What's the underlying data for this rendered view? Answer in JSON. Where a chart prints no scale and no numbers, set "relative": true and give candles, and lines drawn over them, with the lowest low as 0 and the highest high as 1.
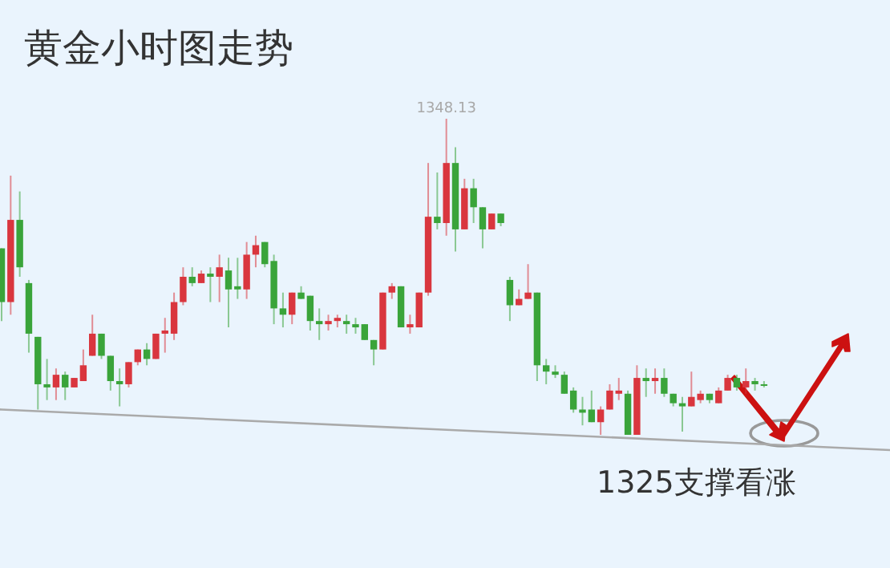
{
  "chart_data": {
    "type": "candlestick",
    "relative": true,
    "title": "黄金小时图走势",
    "categories": [
      null,
      null,
      null,
      null,
      null,
      null,
      null,
      null,
      null,
      null,
      null,
      null,
      null,
      null,
      null,
      null,
      null,
      null,
      null,
      null,
      null,
      null,
      null,
      null,
      null,
      null,
      null,
      null,
      null,
      null,
      null,
      null,
      null,
      null,
      null,
      null,
      null,
      null,
      null,
      null,
      null,
      null,
      null,
      null,
      null,
      null,
      null,
      null,
      null,
      null,
      null,
      null,
      null,
      null,
      null,
      null,
      null,
      null,
      null,
      null,
      null,
      null,
      null,
      null,
      null,
      null,
      null,
      null,
      null,
      null,
      null,
      null,
      null,
      null,
      null,
      null,
      null,
      null,
      null,
      null,
      null,
      null,
      null,
      null,
      null
    ],
    "ohlc": [
      [
        0.59,
        0.59,
        0.36,
        0.42
      ],
      [
        0.42,
        0.82,
        0.38,
        0.68
      ],
      [
        0.68,
        0.77,
        0.5,
        0.53
      ],
      [
        0.48,
        0.49,
        0.26,
        0.32
      ],
      [
        0.31,
        0.31,
        0.08,
        0.16
      ],
      [
        0.16,
        0.24,
        0.11,
        0.15
      ],
      [
        0.15,
        0.21,
        0.11,
        0.19
      ],
      [
        0.19,
        0.2,
        0.11,
        0.15
      ],
      [
        0.15,
        0.18,
        0.15,
        0.18
      ],
      [
        0.17,
        0.27,
        0.17,
        0.22
      ],
      [
        0.25,
        0.38,
        0.25,
        0.32
      ],
      [
        0.32,
        0.32,
        0.24,
        0.25
      ],
      [
        0.25,
        0.25,
        0.14,
        0.17
      ],
      [
        0.17,
        0.21,
        0.09,
        0.16
      ],
      [
        0.16,
        0.23,
        0.15,
        0.23
      ],
      [
        0.23,
        0.27,
        0.22,
        0.27
      ],
      [
        0.27,
        0.29,
        0.22,
        0.24
      ],
      [
        0.24,
        0.32,
        0.24,
        0.32
      ],
      [
        0.32,
        0.37,
        0.26,
        0.33
      ],
      [
        0.32,
        0.45,
        0.3,
        0.42
      ],
      [
        0.42,
        0.53,
        0.41,
        0.5
      ],
      [
        0.5,
        0.53,
        0.47,
        0.48
      ],
      [
        0.48,
        0.52,
        0.48,
        0.51
      ],
      [
        0.51,
        0.53,
        0.42,
        0.5
      ],
      [
        0.5,
        0.57,
        0.42,
        0.53
      ],
      [
        0.52,
        0.56,
        0.34,
        0.46
      ],
      [
        0.47,
        0.56,
        0.43,
        0.46
      ],
      [
        0.46,
        0.61,
        0.43,
        0.57
      ],
      [
        0.57,
        0.63,
        0.53,
        0.6
      ],
      [
        0.61,
        0.61,
        0.53,
        0.54
      ],
      [
        0.55,
        0.57,
        0.35,
        0.4
      ],
      [
        0.4,
        0.45,
        0.34,
        0.38
      ],
      [
        0.38,
        0.45,
        0.35,
        0.45
      ],
      [
        0.45,
        0.47,
        0.43,
        0.43
      ],
      [
        0.44,
        0.44,
        0.33,
        0.36
      ],
      [
        0.36,
        0.4,
        0.3,
        0.35
      ],
      [
        0.35,
        0.38,
        0.33,
        0.36
      ],
      [
        0.36,
        0.38,
        0.34,
        0.37
      ],
      [
        0.36,
        0.38,
        0.32,
        0.35
      ],
      [
        0.35,
        0.37,
        0.32,
        0.34
      ],
      [
        0.35,
        0.35,
        0.3,
        0.3
      ],
      [
        0.3,
        0.3,
        0.22,
        0.27
      ],
      [
        0.27,
        0.45,
        0.27,
        0.45
      ],
      [
        0.45,
        0.48,
        0.43,
        0.47
      ],
      [
        0.47,
        0.47,
        0.34,
        0.34
      ],
      [
        0.34,
        0.38,
        0.32,
        0.35
      ],
      [
        0.34,
        0.45,
        0.34,
        0.45
      ],
      [
        0.45,
        0.86,
        0.44,
        0.69
      ],
      [
        0.69,
        0.83,
        0.65,
        0.67
      ],
      [
        0.67,
        1.0,
        0.63,
        0.86
      ],
      [
        0.86,
        0.91,
        0.58,
        0.65
      ],
      [
        0.65,
        0.81,
        0.65,
        0.78
      ],
      [
        0.78,
        0.81,
        0.67,
        0.72
      ],
      [
        0.72,
        0.72,
        0.59,
        0.65
      ],
      [
        0.65,
        0.7,
        0.65,
        0.7
      ],
      [
        0.7,
        0.7,
        0.66,
        0.67
      ],
      [
        0.49,
        0.5,
        0.36,
        0.41
      ],
      [
        0.41,
        0.46,
        0.41,
        0.43
      ],
      [
        0.43,
        0.54,
        0.43,
        0.45
      ],
      [
        0.45,
        0.45,
        0.17,
        0.22
      ],
      [
        0.22,
        0.24,
        0.16,
        0.2
      ],
      [
        0.2,
        0.22,
        0.18,
        0.19
      ],
      [
        0.19,
        0.2,
        0.13,
        0.13
      ],
      [
        0.14,
        0.15,
        0.07,
        0.08
      ],
      [
        0.08,
        0.12,
        0.03,
        0.07
      ],
      [
        0.08,
        0.14,
        0.04,
        0.04
      ],
      [
        0.04,
        0.09,
        0,
        0.08
      ],
      [
        0.08,
        0.16,
        0.08,
        0.14
      ],
      [
        0.13,
        0.18,
        0.11,
        0.14
      ],
      [
        0.13,
        0.14,
        0,
        0
      ],
      [
        0,
        0.22,
        0,
        0.18
      ],
      [
        0.18,
        0.21,
        0.12,
        0.17
      ],
      [
        0.17,
        0.21,
        0.13,
        0.18
      ],
      [
        0.18,
        0.21,
        0.12,
        0.13
      ],
      [
        0.13,
        0.13,
        0.09,
        0.1
      ],
      [
        0.1,
        0.12,
        0.01,
        0.09
      ],
      [
        0.09,
        0.2,
        0.09,
        0.12
      ],
      [
        0.11,
        0.14,
        0.1,
        0.13
      ],
      [
        0.13,
        0.13,
        0.1,
        0.11
      ],
      [
        0.1,
        0.15,
        0.1,
        0.14
      ],
      [
        0.14,
        0.19,
        0.14,
        0.18
      ],
      [
        0.18,
        0.19,
        0.14,
        0.15
      ],
      [
        0.15,
        0.21,
        0.13,
        0.17
      ],
      [
        0.17,
        0.18,
        0.14,
        0.16
      ],
      [
        0.16,
        0.17,
        0.15,
        0.155
      ]
    ],
    "colors": [
      "#3aa43a",
      "#d9363e",
      "#3aa43a",
      "#3aa43a",
      "#3aa43a",
      "#3aa43a",
      "#d9363e",
      "#3aa43a",
      "#d9363e",
      "#d9363e",
      "#d9363e",
      "#3aa43a",
      "#3aa43a",
      "#3aa43a",
      "#d9363e",
      "#d9363e",
      "#3aa43a",
      "#d9363e",
      "#d9363e",
      "#d9363e",
      "#d9363e",
      "#3aa43a",
      "#d9363e",
      "#3aa43a",
      "#d9363e",
      "#3aa43a",
      "#3aa43a",
      "#d9363e",
      "#d9363e",
      "#3aa43a",
      "#3aa43a",
      "#3aa43a",
      "#d9363e",
      "#3aa43a",
      "#3aa43a",
      "#3aa43a",
      "#d9363e",
      "#d9363e",
      "#3aa43a",
      "#3aa43a",
      "#3aa43a",
      "#3aa43a",
      "#d9363e",
      "#d9363e",
      "#3aa43a",
      "#d9363e",
      "#d9363e",
      "#d9363e",
      "#3aa43a",
      "#d9363e",
      "#3aa43a",
      "#d9363e",
      "#3aa43a",
      "#3aa43a",
      "#d9363e",
      "#3aa43a",
      "#3aa43a",
      "#d9363e",
      "#d9363e",
      "#3aa43a",
      "#3aa43a",
      "#3aa43a",
      "#3aa43a",
      "#3aa43a",
      "#3aa43a",
      "#3aa43a",
      "#d9363e",
      "#d9363e",
      "#d9363e",
      "#3aa43a",
      "#d9363e",
      "#3aa43a",
      "#d9363e",
      "#3aa43a",
      "#3aa43a",
      "#3aa43a",
      "#d9363e",
      "#d9363e",
      "#3aa43a",
      "#d9363e",
      "#d9363e",
      "#3aa43a",
      "#d9363e",
      "#3aa43a",
      "#3aa43a"
    ],
    "series": [
      {
        "type": "line",
        "color": "#aaaaaa",
        "values": [
          0.08,
          null,
          null,
          null,
          null,
          null,
          null,
          null,
          null,
          null,
          null,
          null,
          null,
          null,
          null,
          null,
          null,
          null,
          null,
          null,
          null,
          null,
          null,
          null,
          null,
          null,
          null,
          null,
          null,
          null,
          null,
          null,
          null,
          null,
          null,
          null,
          null,
          null,
          null,
          null,
          null,
          null,
          null,
          null,
          null,
          null,
          null,
          null,
          null,
          null,
          null,
          null,
          null,
          null,
          null,
          null,
          null,
          null,
          null,
          null,
          null,
          null,
          null,
          null,
          null,
          null,
          null,
          null,
          null,
          null,
          null,
          null,
          null,
          null,
          null,
          null,
          null,
          null,
          null,
          null,
          null,
          null,
          null,
          null,
          -0.03
        ]
      }
    ],
    "annotations": [
      {
        "text": "1348.13",
        "y": 1.0
      },
      "1325支撑看涨"
    ]
  }
}
